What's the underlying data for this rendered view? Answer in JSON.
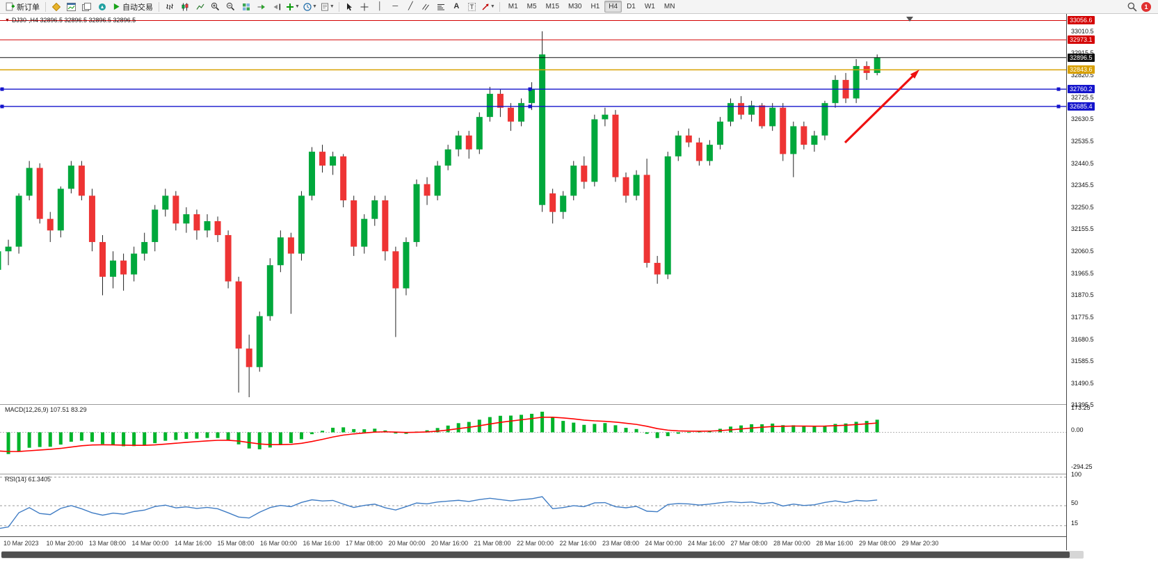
{
  "toolbar": {
    "new_order_label": "新订单",
    "autotrading_label": "自动交易",
    "timeframes": [
      "M1",
      "M5",
      "M15",
      "M30",
      "H1",
      "H4",
      "D1",
      "W1",
      "MN"
    ],
    "active_timeframe": "H4",
    "notification_count": "1"
  },
  "chart_data": {
    "type": "candlestick",
    "symbol": "DJ30-",
    "timeframe": "H4",
    "title_line": "DJ30-,H4  32896.5 32896.5 32896.5 32896.5",
    "current_price": "32896.5",
    "ylim": [
      31400,
      33085
    ],
    "price_ticks": [
      "33010.5",
      "32915.5",
      "32820.5",
      "32725.5",
      "32630.5",
      "32535.5",
      "32440.5",
      "32345.5",
      "32250.5",
      "32155.5",
      "32060.5",
      "31965.5",
      "31870.5",
      "31775.5",
      "31680.5",
      "31585.5",
      "31490.5",
      "31395.5"
    ],
    "colors": {
      "bull": "#00a83c",
      "bear": "#ee3434",
      "wick": "#222222"
    },
    "horizontal_lines": [
      {
        "price": 33056.6,
        "tag": "33056.6",
        "color": "#d40000",
        "width": 1
      },
      {
        "price": 32973.1,
        "tag": "32973.1",
        "color": "#d40000",
        "width": 1
      },
      {
        "price": 32896.5,
        "tag": "32896.5",
        "color": "#111111",
        "width": 1,
        "current": true
      },
      {
        "price": 32843.6,
        "tag": "32843.6",
        "color": "#d8a000",
        "width": 1.4
      },
      {
        "price": 32760.2,
        "tag": "32760.2",
        "color": "#1414cc",
        "width": 1.4,
        "handles": true
      },
      {
        "price": 32685.4,
        "tag": "32685.4",
        "color": "#1414cc",
        "width": 1.4,
        "handles": true
      }
    ],
    "arrow_annotation": {
      "from": [
        1215,
        185
      ],
      "to": [
        1322,
        80
      ],
      "color": "#ee1111"
    },
    "lead_in_closes": [
      32800,
      32740,
      32690,
      32640,
      32600,
      32560,
      32520,
      32480,
      32440,
      32400,
      32360,
      32330,
      32300,
      32270,
      32240,
      32200,
      32170,
      32130,
      32070,
      32000
    ],
    "candles": [
      [
        31980,
        32070,
        31950,
        32060
      ],
      [
        32060,
        32110,
        32000,
        32080
      ],
      [
        32080,
        32310,
        32050,
        32300
      ],
      [
        32300,
        32450,
        32280,
        32420
      ],
      [
        32420,
        32440,
        32180,
        32200
      ],
      [
        32200,
        32230,
        32100,
        32150
      ],
      [
        32150,
        32340,
        32120,
        32330
      ],
      [
        32330,
        32450,
        32310,
        32430
      ],
      [
        32430,
        32450,
        32280,
        32300
      ],
      [
        32300,
        32330,
        32060,
        32100
      ],
      [
        32100,
        32130,
        31870,
        31950
      ],
      [
        31950,
        32060,
        31900,
        32020
      ],
      [
        32020,
        32050,
        31890,
        31960
      ],
      [
        31960,
        32080,
        31930,
        32050
      ],
      [
        32050,
        32140,
        32020,
        32100
      ],
      [
        32100,
        32260,
        32060,
        32240
      ],
      [
        32240,
        32330,
        32210,
        32300
      ],
      [
        32300,
        32320,
        32150,
        32180
      ],
      [
        32180,
        32250,
        32140,
        32220
      ],
      [
        32220,
        32240,
        32110,
        32150
      ],
      [
        32150,
        32220,
        32120,
        32190
      ],
      [
        32190,
        32210,
        32100,
        32130
      ],
      [
        32130,
        32150,
        31900,
        31930
      ],
      [
        31930,
        31950,
        31450,
        31640
      ],
      [
        31640,
        31700,
        31430,
        31560
      ],
      [
        31560,
        31800,
        31540,
        31780
      ],
      [
        31780,
        32030,
        31760,
        32000
      ],
      [
        32000,
        32150,
        31970,
        32120
      ],
      [
        32120,
        32140,
        31790,
        32050
      ],
      [
        32050,
        32320,
        32020,
        32300
      ],
      [
        32300,
        32510,
        32280,
        32490
      ],
      [
        32490,
        32520,
        32400,
        32430
      ],
      [
        32430,
        32490,
        32390,
        32470
      ],
      [
        32470,
        32480,
        32250,
        32280
      ],
      [
        32280,
        32300,
        32040,
        32080
      ],
      [
        32080,
        32220,
        32050,
        32200
      ],
      [
        32200,
        32300,
        32170,
        32280
      ],
      [
        32280,
        32300,
        32020,
        32060
      ],
      [
        32060,
        32080,
        31690,
        31900
      ],
      [
        31900,
        32120,
        31870,
        32100
      ],
      [
        32100,
        32370,
        32080,
        32350
      ],
      [
        32350,
        32380,
        32260,
        32300
      ],
      [
        32300,
        32450,
        32280,
        32430
      ],
      [
        32430,
        32520,
        32410,
        32500
      ],
      [
        32500,
        32580,
        32470,
        32560
      ],
      [
        32560,
        32580,
        32460,
        32500
      ],
      [
        32500,
        32660,
        32480,
        32640
      ],
      [
        32640,
        32770,
        32620,
        32740
      ],
      [
        32740,
        32760,
        32640,
        32680
      ],
      [
        32680,
        32700,
        32580,
        32620
      ],
      [
        32620,
        32720,
        32600,
        32700
      ],
      [
        32700,
        32790,
        32670,
        32760
      ],
      [
        32260,
        33010,
        32230,
        32910
      ],
      [
        32310,
        32330,
        32180,
        32230
      ],
      [
        32230,
        32320,
        32200,
        32300
      ],
      [
        32300,
        32450,
        32280,
        32430
      ],
      [
        32430,
        32470,
        32330,
        32360
      ],
      [
        32360,
        32650,
        32340,
        32630
      ],
      [
        32630,
        32680,
        32600,
        32650
      ],
      [
        32650,
        32670,
        32360,
        32380
      ],
      [
        32380,
        32400,
        32270,
        32300
      ],
      [
        32300,
        32410,
        32280,
        32390
      ],
      [
        32390,
        32460,
        31990,
        32010
      ],
      [
        32010,
        32040,
        31920,
        31960
      ],
      [
        31960,
        32490,
        31940,
        32470
      ],
      [
        32470,
        32580,
        32450,
        32560
      ],
      [
        32560,
        32590,
        32510,
        32530
      ],
      [
        32530,
        32550,
        32430,
        32450
      ],
      [
        32450,
        32540,
        32430,
        32520
      ],
      [
        32520,
        32640,
        32500,
        32620
      ],
      [
        32620,
        32720,
        32600,
        32700
      ],
      [
        32700,
        32730,
        32630,
        32650
      ],
      [
        32650,
        32710,
        32620,
        32690
      ],
      [
        32690,
        32700,
        32590,
        32600
      ],
      [
        32600,
        32700,
        32580,
        32680
      ],
      [
        32680,
        32700,
        32450,
        32480
      ],
      [
        32480,
        32620,
        32380,
        32600
      ],
      [
        32600,
        32620,
        32500,
        32520
      ],
      [
        32520,
        32580,
        32490,
        32560
      ],
      [
        32560,
        32710,
        32540,
        32700
      ],
      [
        32700,
        32820,
        32680,
        32800
      ],
      [
        32800,
        32830,
        32700,
        32720
      ],
      [
        32720,
        32890,
        32700,
        32860
      ],
      [
        32860,
        32880,
        32800,
        32830
      ],
      [
        32830,
        32910,
        32820,
        32896.5
      ]
    ],
    "indicators": {
      "macd": {
        "label": "MACD(12,26,9) 107.51 83.29",
        "fast": 12,
        "slow": 26,
        "signal": 9,
        "scale_max": "173.25",
        "scale_zero": "0.00",
        "scale_min": "-294.25",
        "hist_color": "#00b42a",
        "signal_color": "#ff0000"
      },
      "rsi": {
        "label": "RSI(14) 61.3405",
        "period": 14,
        "levels": [
          100,
          50,
          15
        ],
        "color": "#3f7cc4"
      }
    },
    "time_labels": [
      "10 Mar 2023",
      "10 Mar 20:00",
      "13 Mar 08:00",
      "14 Mar 00:00",
      "14 Mar 16:00",
      "15 Mar 08:00",
      "16 Mar 00:00",
      "16 Mar 16:00",
      "17 Mar 08:00",
      "20 Mar 00:00",
      "20 Mar 16:00",
      "21 Mar 08:00",
      "22 Mar 00:00",
      "22 Mar 16:00",
      "23 Mar 08:00",
      "24 Mar 00:00",
      "24 Mar 16:00",
      "27 Mar 08:00",
      "28 Mar 00:00",
      "28 Mar 16:00",
      "29 Mar 08:00",
      "29 Mar 20:30"
    ]
  }
}
